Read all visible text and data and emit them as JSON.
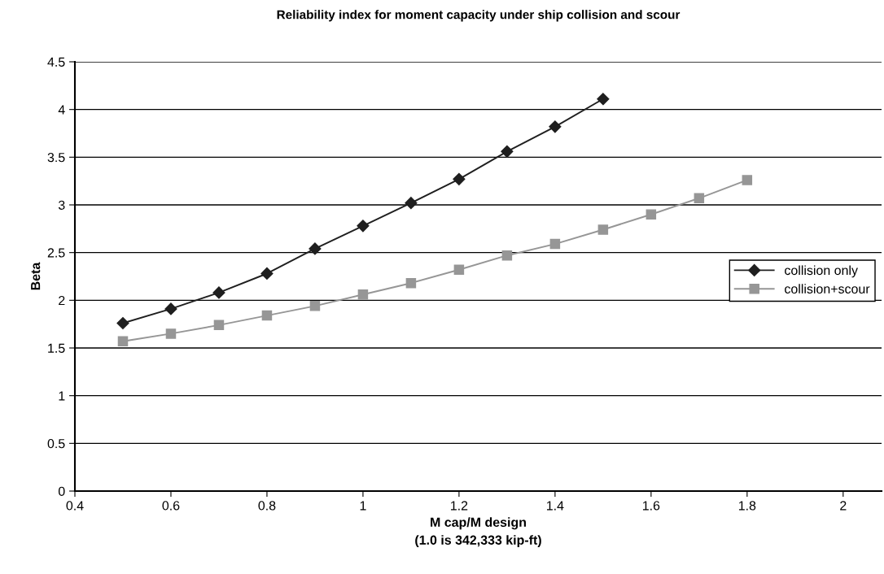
{
  "chart_data": {
    "type": "line",
    "title": "Reliability index for moment capacity under ship collision and scour",
    "xlabel": "M cap/M design\n(1.0 is 342,333 kip-ft)",
    "ylabel": "Beta",
    "xlim": [
      0.4,
      2.08
    ],
    "xticks": [
      0.4,
      0.6,
      0.8,
      1,
      1.2,
      1.4,
      1.6,
      1.8,
      2
    ],
    "ylim": [
      0,
      4.5
    ],
    "yticks": [
      0,
      0.5,
      1,
      1.5,
      2,
      2.5,
      3,
      3.5,
      4,
      4.5
    ],
    "grid": "y",
    "legend": "right",
    "series": [
      {
        "name": "collision only",
        "color": "#1f1f1f",
        "marker": "diamond",
        "x": [
          0.5,
          0.6,
          0.7,
          0.8,
          0.9,
          1.0,
          1.1,
          1.2,
          1.3,
          1.4,
          1.5
        ],
        "values": [
          1.76,
          1.91,
          2.08,
          2.28,
          2.54,
          2.78,
          3.02,
          3.27,
          3.56,
          3.82,
          4.11
        ]
      },
      {
        "name": "collision+scour",
        "color": "#969696",
        "marker": "square",
        "x": [
          0.5,
          0.6,
          0.7,
          0.8,
          0.9,
          1.0,
          1.1,
          1.2,
          1.3,
          1.4,
          1.5,
          1.6,
          1.7,
          1.8
        ],
        "values": [
          1.57,
          1.65,
          1.74,
          1.84,
          1.94,
          2.06,
          2.18,
          2.32,
          2.47,
          2.59,
          2.74,
          2.9,
          3.07,
          3.26
        ]
      }
    ]
  }
}
